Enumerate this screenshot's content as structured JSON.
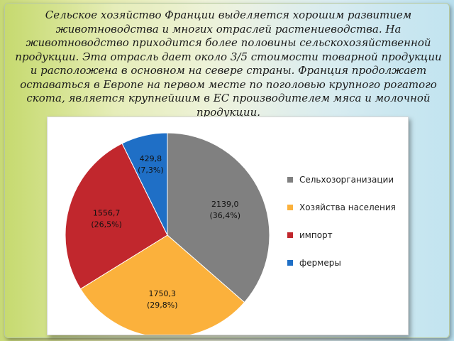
{
  "slide": {
    "paragraph": "Сельское хозяйство Франции выделяется хорошим развитием животноводства и многих отраслей растениеводства. На животноводство приходится более половины сельскохозяйственной продукции. Эта отрасль дает около 3/5 стоимости товарной продукции и расположена в основном на севере страны. Франция продолжает оставаться в Европе на первом месте по поголовью крупного рогатого скота, является крупнейшим в ЕС производителем мяса и молочной продукции."
  },
  "chart_data": {
    "type": "pie",
    "categories": [
      "Сельхозорганизации",
      "Хозяйства населения",
      "импорт",
      "фермеры"
    ],
    "values": [
      2139.0,
      1750.3,
      1556.7,
      429.8
    ],
    "value_labels": [
      "2139,0",
      "1750,3",
      "1556,7",
      "429,8"
    ],
    "percent_labels": [
      "(36,4%)",
      "(29,8%)",
      "(26,5%)",
      "(7,3%)"
    ],
    "colors": [
      "#808080",
      "#fbb13c",
      "#c1272d",
      "#1f6fc6"
    ],
    "label_colors": [
      "#111111",
      "#111111",
      "#111111",
      "#111111"
    ],
    "legend_position": "right"
  }
}
